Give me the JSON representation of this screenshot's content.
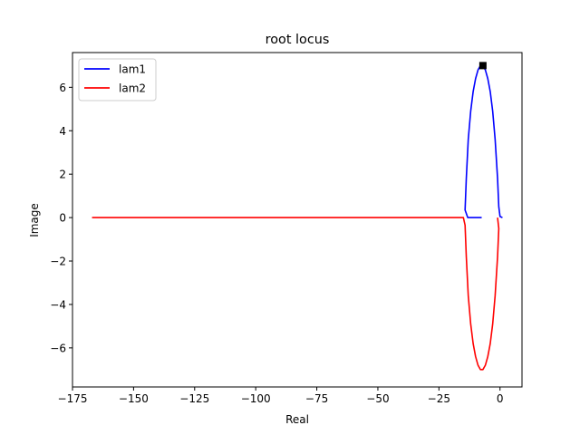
{
  "chart_data": {
    "type": "line",
    "title": "root locus",
    "xlabel": "Real",
    "ylabel": "Image",
    "xlim": [
      -175,
      9
    ],
    "ylim": [
      -7.8,
      7.6
    ],
    "grid": false,
    "legend": "upper-left",
    "xticks": [
      -175,
      -150,
      -125,
      -100,
      -75,
      -50,
      -25,
      0
    ],
    "yticks": [
      -6,
      -4,
      -2,
      0,
      2,
      4,
      6
    ],
    "series": [
      {
        "name": "lam1",
        "color": "#0000ff",
        "x": [
          1.0,
          0.0,
          -0.5,
          -1.0,
          -2.0,
          -3.0,
          -4.0,
          -5.0,
          -6.0,
          -7.0,
          -8.0,
          -9.0,
          -10.0,
          -11.0,
          -12.0,
          -13.0,
          -13.8,
          -14.3,
          -13.2,
          -12.0,
          -11.0,
          -10.0,
          -8.0,
          -7.5
        ],
        "y": [
          0.0,
          0.05,
          0.5,
          1.8,
          3.6,
          4.9,
          5.8,
          6.4,
          6.8,
          7.0,
          7.0,
          6.8,
          6.4,
          5.8,
          4.9,
          3.6,
          1.8,
          0.35,
          0.0,
          0.0,
          0.0,
          0.0,
          0.0,
          0.0
        ]
      },
      {
        "name": "lam2",
        "color": "#ff0000",
        "x": [
          -1.0,
          -0.5,
          -1.0,
          -2.0,
          -3.0,
          -4.0,
          -5.0,
          -6.0,
          -7.0,
          -8.0,
          -9.0,
          -10.0,
          -11.0,
          -12.0,
          -13.0,
          -13.8,
          -14.3,
          -15.0,
          -17.0,
          -30.0,
          -60.0,
          -100.0,
          -140.0,
          -167.0
        ],
        "y": [
          0.0,
          -0.5,
          -1.8,
          -3.6,
          -4.9,
          -5.8,
          -6.4,
          -6.8,
          -7.0,
          -7.0,
          -6.8,
          -6.4,
          -5.8,
          -4.9,
          -3.6,
          -1.8,
          -0.35,
          0.0,
          0.0,
          0.0,
          0.0,
          0.0,
          0.0,
          0.0
        ]
      }
    ],
    "markers": [
      {
        "name": "square",
        "x": -7,
        "y": 7.0,
        "color": "#000000"
      }
    ]
  }
}
